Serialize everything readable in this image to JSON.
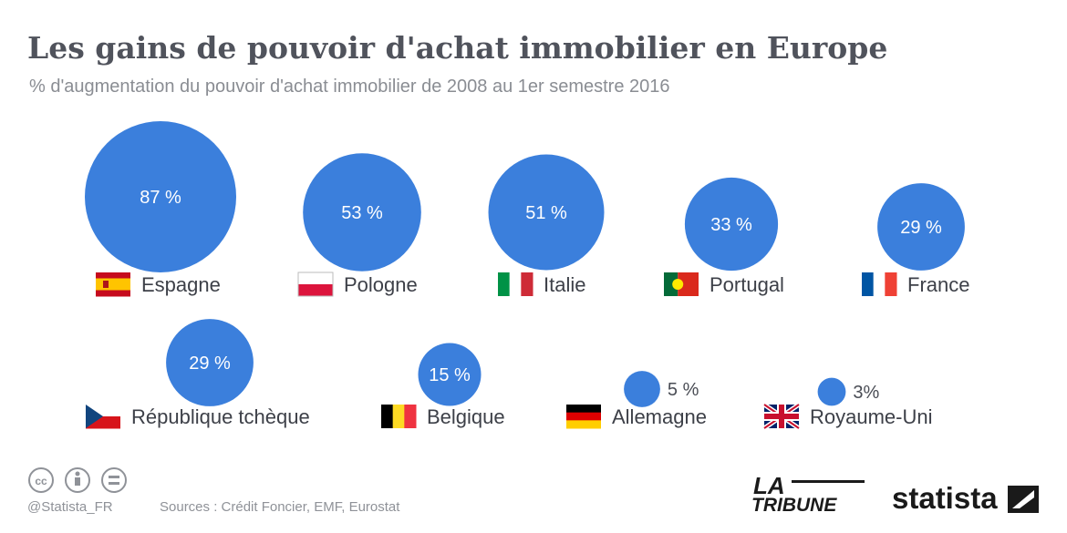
{
  "header": {
    "title": "Les gains de pouvoir d'achat immobilier en Europe",
    "subtitle": "% d'augmentation du pouvoir d'achat immobilier de 2008 au 1er semestre 2016"
  },
  "colors": {
    "bubble": "#3b7fdc",
    "title": "#50535c",
    "subtitle": "#8a8d93"
  },
  "chart_data": {
    "type": "bubble",
    "unit": "%",
    "items": [
      {
        "country": "Espagne",
        "value": 87,
        "label": "87 %",
        "flag": "es"
      },
      {
        "country": "Pologne",
        "value": 53,
        "label": "53 %",
        "flag": "pl"
      },
      {
        "country": "Italie",
        "value": 51,
        "label": "51 %",
        "flag": "it"
      },
      {
        "country": "Portugal",
        "value": 33,
        "label": "33 %",
        "flag": "pt"
      },
      {
        "country": "France",
        "value": 29,
        "label": "29 %",
        "flag": "fr"
      },
      {
        "country": "République tchèque",
        "value": 29,
        "label": "29 %",
        "flag": "cz"
      },
      {
        "country": "Belgique",
        "value": 15,
        "label": "15 %",
        "flag": "be"
      },
      {
        "country": "Allemagne",
        "value": 5,
        "label": "5 %",
        "flag": "de"
      },
      {
        "country": "Royaume-Uni",
        "value": 3,
        "label": "3%",
        "flag": "gb"
      }
    ]
  },
  "footer": {
    "handle": "@Statista_FR",
    "sources": "Sources : Crédit Foncier, EMF, Eurostat",
    "icons": [
      "cc-icon",
      "attribution-icon",
      "no-derivatives-icon"
    ],
    "logos": {
      "tribune_line1": "LA",
      "tribune_line2": "TRIBUNE",
      "statista": "statista"
    }
  }
}
